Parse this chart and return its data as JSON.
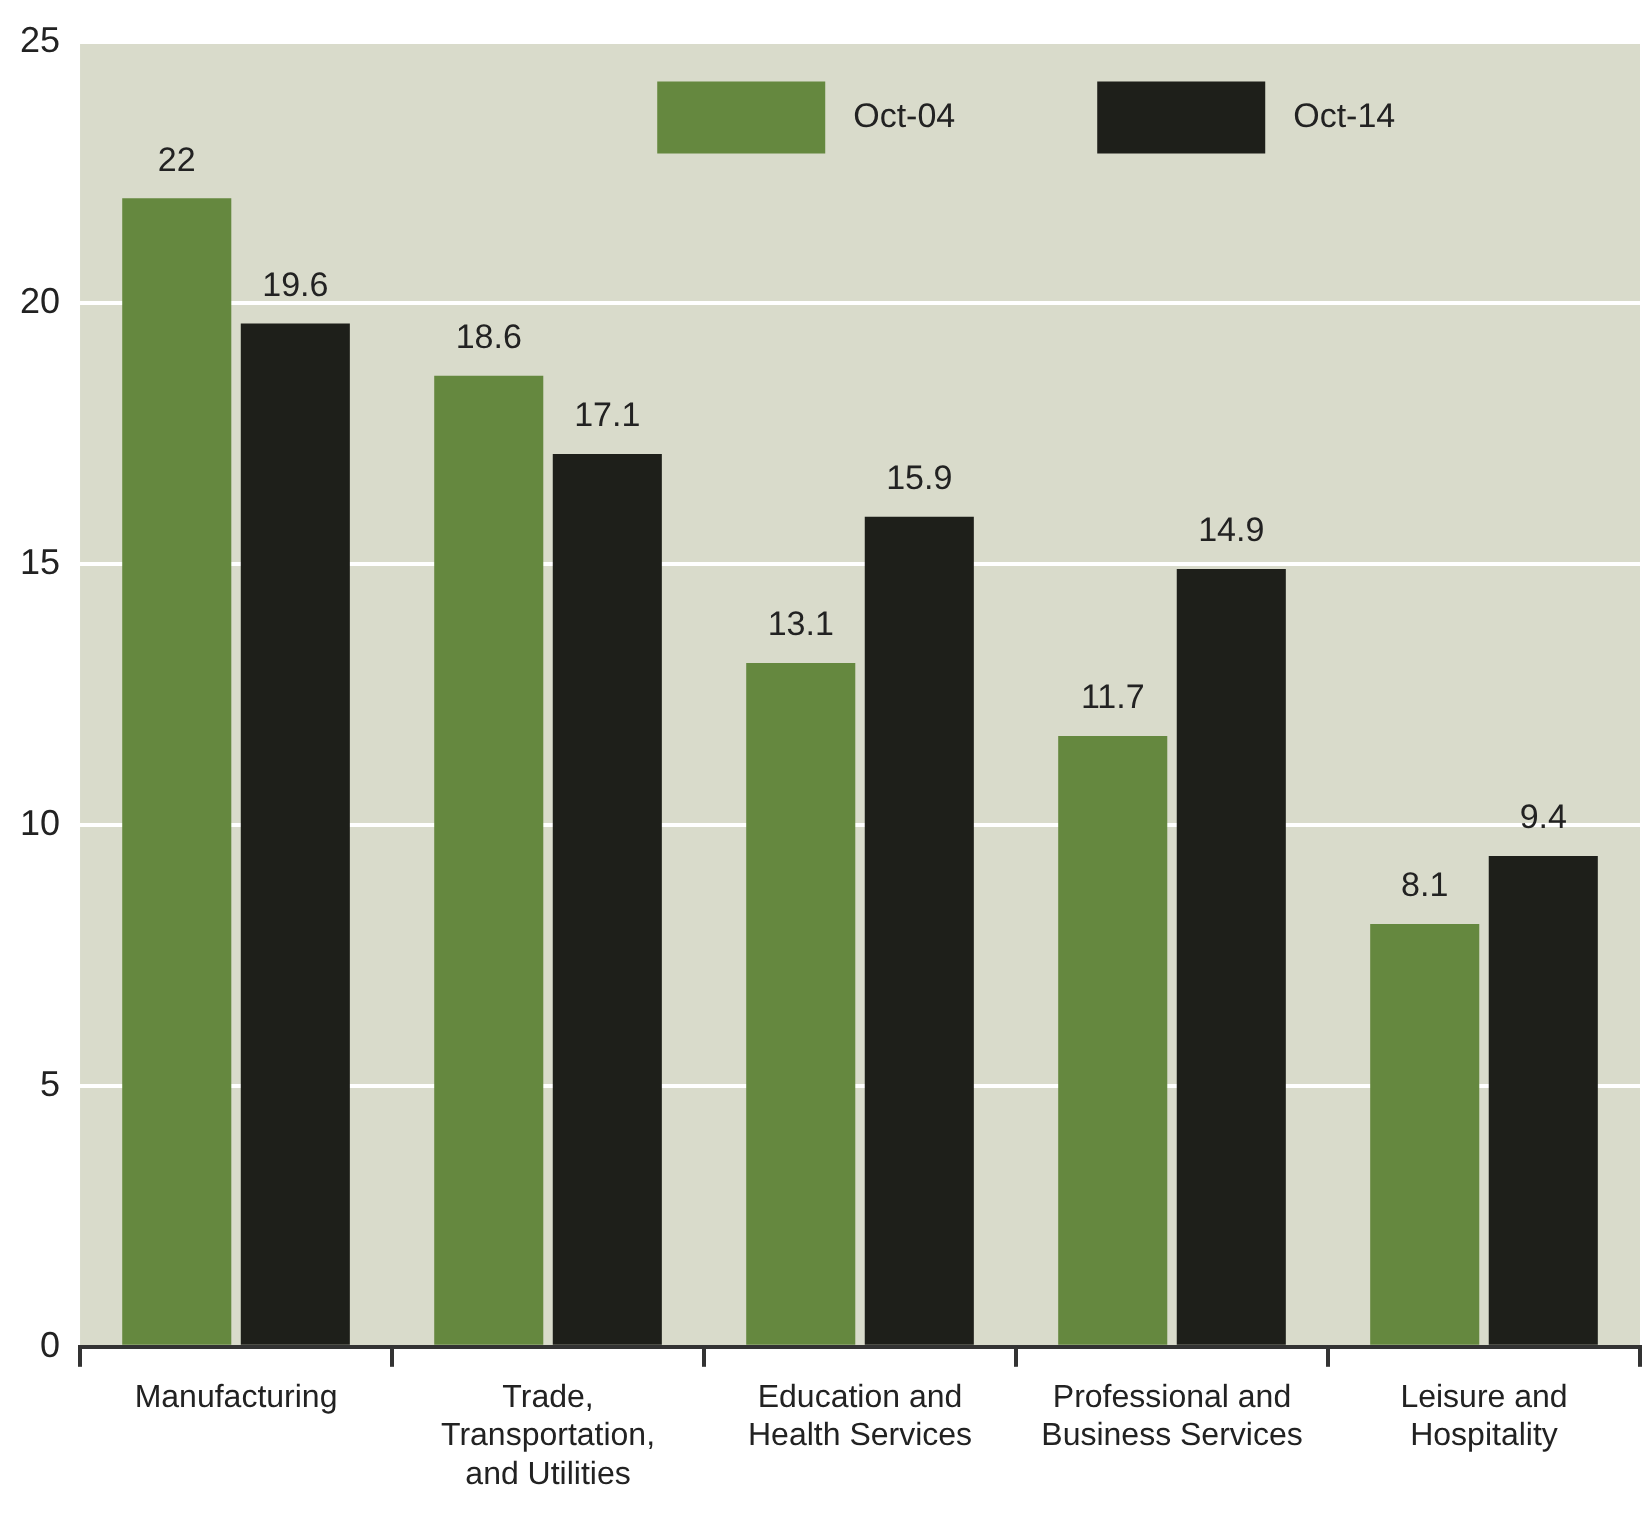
{
  "chart_data": {
    "type": "bar",
    "categories": [
      "Manufacturing",
      "Trade, Transportation, and Utilities",
      "Education and Health Services",
      "Professional and Business Services",
      "Leisure and Hospitality"
    ],
    "series": [
      {
        "name": "Oct-04",
        "color": "#65883f",
        "values": [
          22,
          18.6,
          13.1,
          11.7,
          8.1
        ]
      },
      {
        "name": "Oct-14",
        "color": "#1e1f1a",
        "values": [
          19.6,
          17.1,
          15.9,
          14.9,
          9.4
        ]
      }
    ],
    "ylim": [
      0,
      25
    ],
    "yticks": [
      0,
      5,
      10,
      15,
      20,
      25
    ],
    "grid": "y",
    "legend": "top",
    "data_labels": true
  }
}
